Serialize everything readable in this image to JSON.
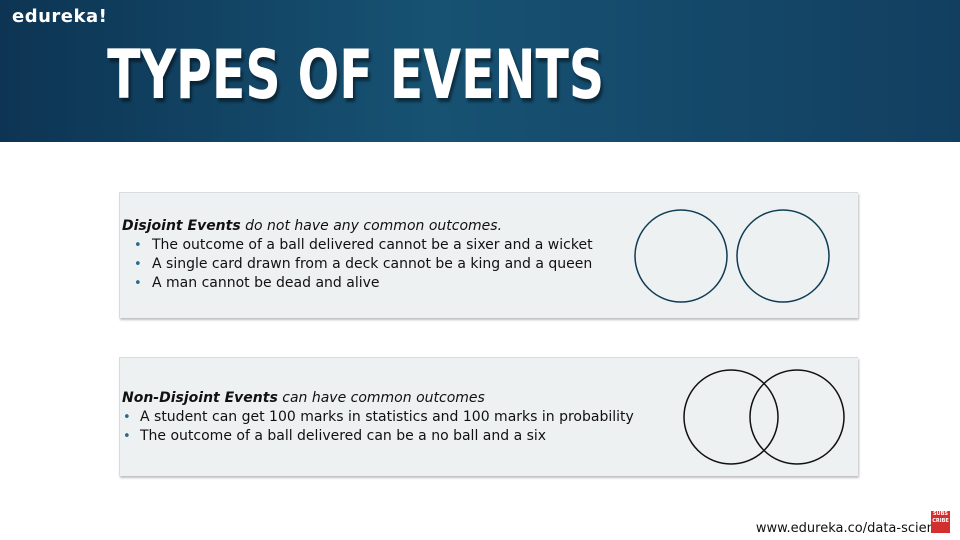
{
  "header": {
    "logo": "edureka!",
    "title": "TYPES OF EVENTS"
  },
  "disjoint": {
    "term": "Disjoint Events",
    "description": " do not have any common outcomes.",
    "bullets": [
      "The outcome of a ball delivered cannot be a sixer and a wicket",
      "A single card drawn from a deck cannot be a king and a queen",
      "A man cannot be dead and alive"
    ]
  },
  "non_disjoint": {
    "term": "Non-Disjoint Events",
    "description": " can have common outcomes",
    "bullets": [
      "A student can get 100 marks in statistics and 100 marks in probability",
      "The outcome of a ball delivered can be a no ball and a six"
    ]
  },
  "footer": {
    "url": "www.edureka.co/data-science",
    "badge_text": "SUBS CRIBE"
  },
  "colors": {
    "header_dark": "#0d3453",
    "header_mid": "#175273",
    "circle_stroke": "#0f3c55",
    "card_bg": "#eef1f2",
    "bullet": "#2a6a8c",
    "badge": "#d32f2f"
  },
  "icons": {
    "disjoint_diagram": "venn-separate-circles-icon",
    "non_disjoint_diagram": "venn-overlapping-circles-icon",
    "badge": "subscribe-badge-icon"
  }
}
